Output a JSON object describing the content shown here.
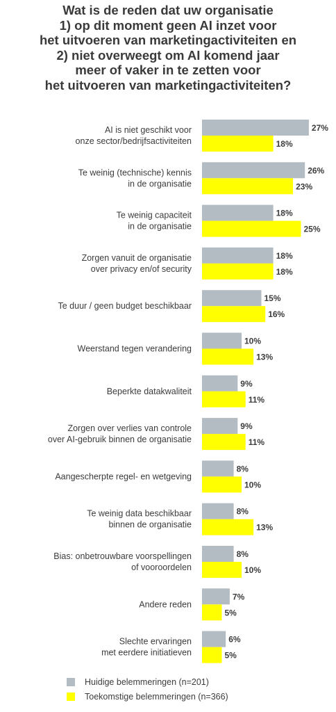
{
  "chart_data": {
    "type": "bar",
    "orientation": "horizontal",
    "title_lines": [
      "Wat is de reden dat uw organisatie",
      "1) op dit moment geen AI inzet voor",
      "het uitvoeren van marketingactiviteiten en",
      "2) niet overweegt om AI komend jaar",
      "meer of vaker in te zetten voor",
      "het uitvoeren van marketingactiviteiten?"
    ],
    "categories": [
      [
        "AI is niet geschikt voor",
        "onze sector/bedrijfsactiviteiten"
      ],
      [
        "Te weinig (technische) kennis",
        "in de organisatie"
      ],
      [
        "Te weinig capaciteit",
        "in de organisatie"
      ],
      [
        "Zorgen vanuit de organisatie",
        "over privacy en/of security"
      ],
      [
        "Te duur / geen budget beschikbaar"
      ],
      [
        "Weerstand tegen verandering"
      ],
      [
        "Beperkte datakwaliteit"
      ],
      [
        "Zorgen over verlies van controle",
        "over AI-gebruik binnen de organisatie"
      ],
      [
        "Aangescherpte regel- en wetgeving"
      ],
      [
        "Te weinig data beschikbaar",
        "binnen de organisatie"
      ],
      [
        "Bias: onbetrouwbare voorspellingen",
        "of vooroordelen"
      ],
      [
        "Andere reden"
      ],
      [
        "Slechte ervaringen",
        "met eerdere initiatieven"
      ]
    ],
    "series": [
      {
        "name": "Huidige belemmeringen (n=201)",
        "color": "#b3bcc3",
        "values": [
          27,
          26,
          18,
          18,
          15,
          10,
          9,
          9,
          8,
          8,
          8,
          7,
          6
        ]
      },
      {
        "name": "Toekomstige belemmeringen (n=366)",
        "color": "#ffff00",
        "values": [
          18,
          23,
          25,
          18,
          16,
          13,
          11,
          11,
          10,
          13,
          10,
          5,
          5
        ]
      }
    ],
    "value_suffix": "%",
    "legend_position": "bottom-left",
    "grid": false
  }
}
